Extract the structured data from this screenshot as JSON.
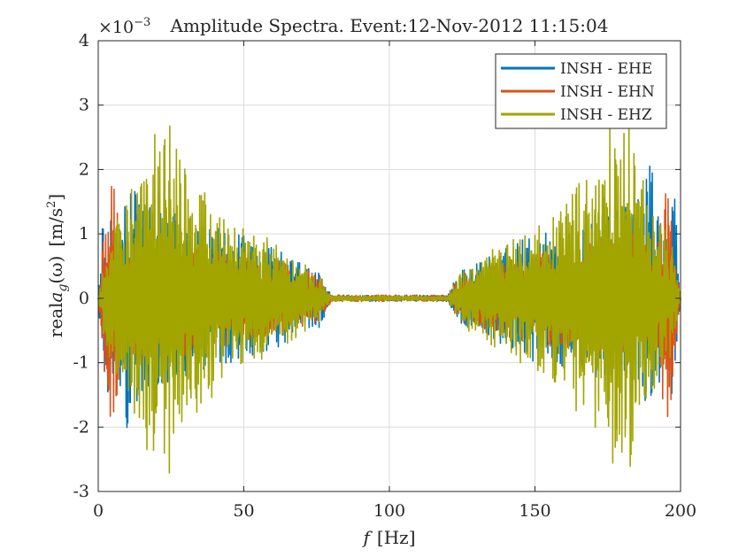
{
  "chart_data": {
    "type": "line",
    "title": "Amplitude Spectra. Event:12-Nov-2012 11:15:04",
    "exponent_label": {
      "base": "×10",
      "power": "−3"
    },
    "xlabel": {
      "var": "f",
      "unit": "[Hz]"
    },
    "ylabel": {
      "prefix": "real",
      "var": "a",
      "sub": "g",
      "arg": "(ω)",
      "unit": "[m/s",
      "unit_sup": "2",
      "unit_close": "]"
    },
    "xlim": [
      0,
      200
    ],
    "ylim": [
      -3,
      4
    ],
    "y_scale": 0.001,
    "x_ticks": [
      "0",
      "50",
      "100",
      "150",
      "200"
    ],
    "x_tick_values": [
      0,
      50,
      100,
      150,
      200
    ],
    "y_ticks": [
      "-3",
      "-2",
      "-1",
      "0",
      "1",
      "2",
      "3",
      "4"
    ],
    "y_tick_values": [
      -3,
      -2,
      -1,
      0,
      1,
      2,
      3,
      4
    ],
    "grid": true,
    "legend_position": "top-right",
    "series": [
      {
        "name": "INSH - EHE",
        "color": "#0072BD",
        "envelope_x": [
          0,
          2,
          4,
          6,
          8,
          10,
          12,
          15,
          20,
          25,
          30,
          40,
          50,
          60,
          70,
          76,
          80,
          120,
          124,
          130,
          140,
          150,
          160,
          170,
          175,
          180,
          185,
          188,
          190,
          192,
          194,
          196,
          198,
          200
        ],
        "envelope": [
          0,
          1.6,
          1.4,
          1.2,
          1.6,
          2.2,
          1.8,
          1.5,
          1.4,
          1.4,
          1.3,
          1.1,
          1.0,
          0.8,
          0.55,
          0.45,
          0.05,
          0.05,
          0.45,
          0.55,
          0.8,
          1.0,
          1.1,
          1.3,
          1.4,
          1.4,
          1.5,
          1.8,
          2.2,
          1.6,
          1.2,
          1.4,
          1.6,
          0
        ]
      },
      {
        "name": "INSH - EHN",
        "color": "#D95319",
        "envelope_x": [
          0,
          2,
          4,
          5,
          6,
          8,
          10,
          12,
          15,
          20,
          30,
          40,
          50,
          60,
          70,
          76,
          80,
          120,
          124,
          130,
          140,
          150,
          160,
          170,
          180,
          185,
          188,
          190,
          192,
          194,
          195,
          196,
          198,
          200
        ],
        "envelope": [
          0,
          1.1,
          1.9,
          2.15,
          1.6,
          1.2,
          1.0,
          1.0,
          1.0,
          1.0,
          0.9,
          0.8,
          0.7,
          0.6,
          0.45,
          0.4,
          0.05,
          0.05,
          0.4,
          0.45,
          0.6,
          0.7,
          0.8,
          0.9,
          1.0,
          1.0,
          1.0,
          1.0,
          1.2,
          1.6,
          2.15,
          1.9,
          1.1,
          0
        ]
      },
      {
        "name": "INSH - EHZ",
        "color": "#A2A500",
        "envelope_x": [
          0,
          3,
          8,
          12,
          15,
          18,
          20,
          22,
          24,
          25,
          28,
          30,
          35,
          40,
          45,
          50,
          55,
          60,
          65,
          70,
          74,
          77,
          80,
          120,
          123,
          126,
          130,
          135,
          140,
          145,
          150,
          155,
          160,
          165,
          170,
          172,
          175,
          176,
          178,
          180,
          182,
          185,
          188,
          192,
          197,
          200
        ],
        "envelope": [
          0,
          0.9,
          1.4,
          1.8,
          1.9,
          3.0,
          2.5,
          2.3,
          2.8,
          2.9,
          2.2,
          2.0,
          1.8,
          1.5,
          1.2,
          1.1,
          1.0,
          0.9,
          0.75,
          0.55,
          0.5,
          0.3,
          0.04,
          0.04,
          0.3,
          0.5,
          0.55,
          0.75,
          0.9,
          1.0,
          1.1,
          1.2,
          1.5,
          1.8,
          2.0,
          2.2,
          2.9,
          2.8,
          2.3,
          2.5,
          3.0,
          1.9,
          1.8,
          1.4,
          0.9,
          0
        ]
      }
    ]
  }
}
